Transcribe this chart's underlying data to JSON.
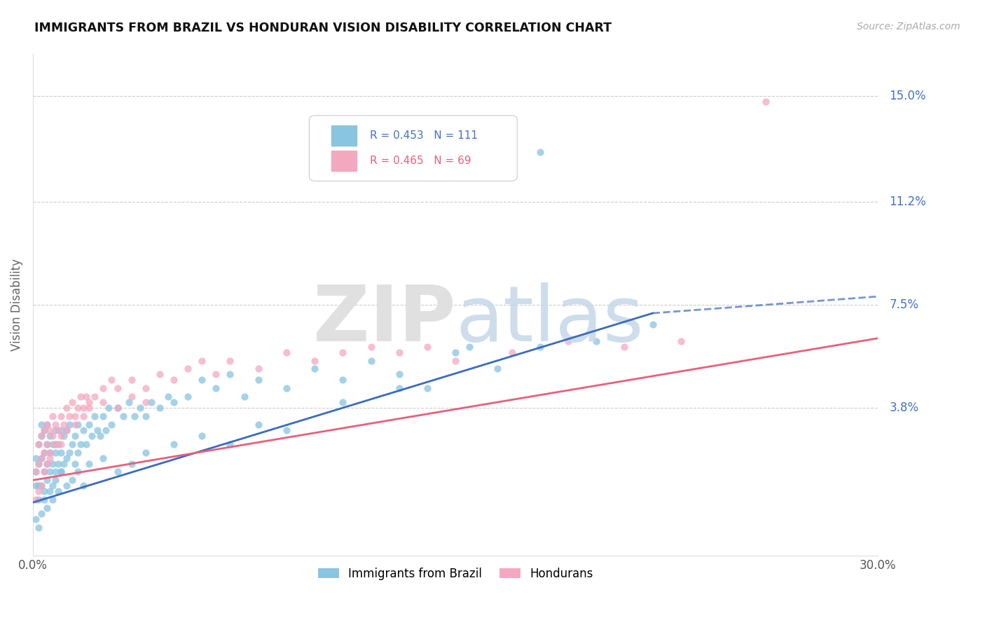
{
  "title": "IMMIGRANTS FROM BRAZIL VS HONDURAN VISION DISABILITY CORRELATION CHART",
  "source": "Source: ZipAtlas.com",
  "ylabel": "Vision Disability",
  "xlim": [
    0.0,
    0.3
  ],
  "ylim": [
    -0.015,
    0.165
  ],
  "ytick_positions": [
    0.038,
    0.075,
    0.112,
    0.15
  ],
  "ytick_labels": [
    "3.8%",
    "7.5%",
    "11.2%",
    "15.0%"
  ],
  "r_brazil": 0.453,
  "n_brazil": 111,
  "r_honduran": 0.465,
  "n_honduran": 69,
  "color_brazil": "#89c4e1",
  "color_honduran": "#f4a8c0",
  "color_brazil_line": "#3a6bbf",
  "color_honduran_line": "#e8607a",
  "background": "#ffffff",
  "brazil_line_start_y": 0.004,
  "brazil_line_end_solid_x": 0.22,
  "brazil_line_end_y": 0.072,
  "brazil_line_dash_end_y": 0.078,
  "honduran_line_start_y": 0.012,
  "honduran_line_end_y": 0.063,
  "brazil_x": [
    0.001,
    0.001,
    0.001,
    0.002,
    0.002,
    0.002,
    0.002,
    0.003,
    0.003,
    0.003,
    0.003,
    0.004,
    0.004,
    0.004,
    0.004,
    0.005,
    0.005,
    0.005,
    0.005,
    0.006,
    0.006,
    0.006,
    0.007,
    0.007,
    0.007,
    0.008,
    0.008,
    0.008,
    0.009,
    0.009,
    0.01,
    0.01,
    0.01,
    0.011,
    0.011,
    0.012,
    0.012,
    0.013,
    0.013,
    0.014,
    0.015,
    0.015,
    0.016,
    0.016,
    0.017,
    0.018,
    0.019,
    0.02,
    0.021,
    0.022,
    0.023,
    0.024,
    0.025,
    0.026,
    0.027,
    0.028,
    0.03,
    0.032,
    0.034,
    0.036,
    0.038,
    0.04,
    0.042,
    0.045,
    0.048,
    0.05,
    0.055,
    0.06,
    0.065,
    0.07,
    0.075,
    0.08,
    0.09,
    0.1,
    0.11,
    0.12,
    0.13,
    0.14,
    0.15,
    0.165,
    0.18,
    0.2,
    0.22,
    0.001,
    0.002,
    0.003,
    0.004,
    0.005,
    0.006,
    0.007,
    0.008,
    0.009,
    0.01,
    0.012,
    0.014,
    0.016,
    0.018,
    0.02,
    0.025,
    0.03,
    0.035,
    0.04,
    0.05,
    0.06,
    0.07,
    0.08,
    0.09,
    0.11,
    0.13,
    0.155,
    0.18
  ],
  "brazil_y": [
    0.01,
    0.015,
    0.02,
    0.005,
    0.01,
    0.018,
    0.025,
    0.01,
    0.02,
    0.028,
    0.032,
    0.008,
    0.015,
    0.022,
    0.03,
    0.012,
    0.018,
    0.025,
    0.032,
    0.015,
    0.022,
    0.028,
    0.01,
    0.018,
    0.025,
    0.015,
    0.022,
    0.03,
    0.018,
    0.025,
    0.015,
    0.022,
    0.03,
    0.018,
    0.028,
    0.02,
    0.03,
    0.022,
    0.032,
    0.025,
    0.018,
    0.028,
    0.022,
    0.032,
    0.025,
    0.03,
    0.025,
    0.032,
    0.028,
    0.035,
    0.03,
    0.028,
    0.035,
    0.03,
    0.038,
    0.032,
    0.038,
    0.035,
    0.04,
    0.035,
    0.038,
    0.035,
    0.04,
    0.038,
    0.042,
    0.04,
    0.042,
    0.048,
    0.045,
    0.05,
    0.042,
    0.048,
    0.045,
    0.052,
    0.048,
    0.055,
    0.05,
    0.045,
    0.058,
    0.052,
    0.06,
    0.062,
    0.068,
    -0.002,
    -0.005,
    0.0,
    0.005,
    0.002,
    0.008,
    0.005,
    0.012,
    0.008,
    0.015,
    0.01,
    0.012,
    0.015,
    0.01,
    0.018,
    0.02,
    0.015,
    0.018,
    0.022,
    0.025,
    0.028,
    0.025,
    0.032,
    0.03,
    0.04,
    0.045,
    0.06,
    0.13
  ],
  "honduran_x": [
    0.001,
    0.002,
    0.002,
    0.003,
    0.003,
    0.004,
    0.004,
    0.005,
    0.005,
    0.006,
    0.006,
    0.007,
    0.007,
    0.008,
    0.008,
    0.009,
    0.01,
    0.01,
    0.011,
    0.012,
    0.013,
    0.014,
    0.015,
    0.016,
    0.017,
    0.018,
    0.019,
    0.02,
    0.022,
    0.025,
    0.028,
    0.03,
    0.035,
    0.04,
    0.045,
    0.05,
    0.055,
    0.06,
    0.065,
    0.07,
    0.08,
    0.09,
    0.1,
    0.11,
    0.12,
    0.13,
    0.14,
    0.15,
    0.17,
    0.19,
    0.21,
    0.23,
    0.001,
    0.002,
    0.003,
    0.004,
    0.005,
    0.006,
    0.008,
    0.01,
    0.012,
    0.015,
    0.018,
    0.02,
    0.025,
    0.03,
    0.035,
    0.04,
    0.26
  ],
  "honduran_y": [
    0.015,
    0.018,
    0.025,
    0.02,
    0.028,
    0.022,
    0.03,
    0.025,
    0.032,
    0.022,
    0.03,
    0.028,
    0.035,
    0.025,
    0.032,
    0.03,
    0.028,
    0.035,
    0.032,
    0.038,
    0.035,
    0.04,
    0.035,
    0.038,
    0.042,
    0.038,
    0.042,
    0.04,
    0.042,
    0.045,
    0.048,
    0.045,
    0.048,
    0.045,
    0.05,
    0.048,
    0.052,
    0.055,
    0.05,
    0.055,
    0.052,
    0.058,
    0.055,
    0.058,
    0.06,
    0.058,
    0.06,
    0.055,
    0.058,
    0.062,
    0.06,
    0.062,
    0.005,
    0.008,
    0.01,
    0.015,
    0.018,
    0.02,
    0.025,
    0.025,
    0.03,
    0.032,
    0.035,
    0.038,
    0.04,
    0.038,
    0.042,
    0.04,
    0.148
  ]
}
